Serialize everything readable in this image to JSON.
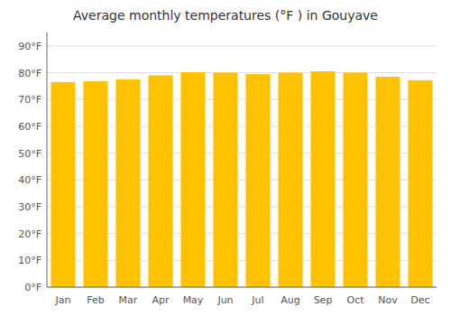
{
  "chart_data": {
    "type": "bar",
    "title": "Average monthly temperatures (°F ) in Gouyave",
    "categories": [
      "Jan",
      "Feb",
      "Mar",
      "Apr",
      "May",
      "Jun",
      "Jul",
      "Aug",
      "Sep",
      "Oct",
      "Nov",
      "Dec"
    ],
    "values": [
      76.5,
      76.8,
      77.5,
      79.0,
      80.2,
      80.0,
      79.5,
      80.0,
      80.5,
      80.0,
      78.5,
      77.2
    ],
    "color": "#FFC200",
    "ylim": [
      0,
      95
    ],
    "yticks": [
      {
        "value": 0,
        "label": "0°F"
      },
      {
        "value": 10,
        "label": "10°F"
      },
      {
        "value": 20,
        "label": "20°F"
      },
      {
        "value": 30,
        "label": "30°F"
      },
      {
        "value": 40,
        "label": "40°F"
      },
      {
        "value": 50,
        "label": "50°F"
      },
      {
        "value": 60,
        "label": "60°F"
      },
      {
        "value": 70,
        "label": "70°F"
      },
      {
        "value": 80,
        "label": "80°F"
      },
      {
        "value": 90,
        "label": "90°F"
      }
    ],
    "grid": true
  }
}
